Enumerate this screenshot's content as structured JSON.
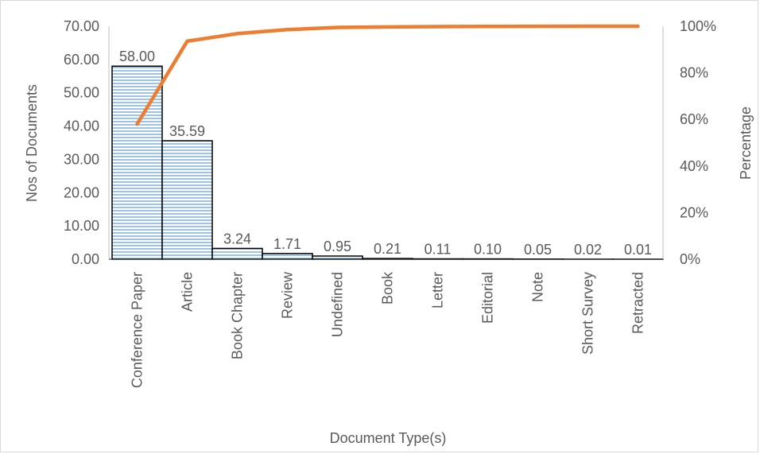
{
  "chart_data": {
    "type": "bar",
    "categories": [
      "Conference Paper",
      "Article",
      "Book Chapter",
      "Review",
      "Undefined",
      "Book",
      "Letter",
      "Editorial",
      "Note",
      "Short Survey",
      "Retracted"
    ],
    "series": [
      {
        "values": [
          58.0,
          35.59,
          3.24,
          1.71,
          0.95,
          0.21,
          0.11,
          0.1,
          0.05,
          0.02,
          0.01
        ],
        "labels": [
          "58.00",
          "35.59",
          "3.24",
          "1.71",
          "0.95",
          "0.21",
          "0.11",
          "0.10",
          "0.05",
          "0.02",
          "0.01"
        ],
        "chart_type": "bar",
        "axis": "left",
        "color": "#9dc3e6"
      },
      {
        "values": [
          0.58,
          0.9359,
          0.9683,
          0.9854,
          0.9949,
          0.997,
          0.9981,
          0.9991,
          0.9996,
          0.9998,
          0.9999
        ],
        "chart_type": "line",
        "axis": "right",
        "color": "#ed7d31"
      }
    ],
    "xlabel": "Document Type(s)",
    "ylabel": "Nos of Documents",
    "y2label": "Percentage",
    "ylim": [
      0,
      70
    ],
    "y2lim": [
      0,
      1
    ],
    "yticks": [
      "0.00",
      "10.00",
      "20.00",
      "30.00",
      "40.00",
      "50.00",
      "60.00",
      "70.00"
    ],
    "y2ticks": [
      "0%",
      "20%",
      "40%",
      "60%",
      "80%",
      "100%"
    ],
    "grid": false,
    "legend": "none"
  }
}
